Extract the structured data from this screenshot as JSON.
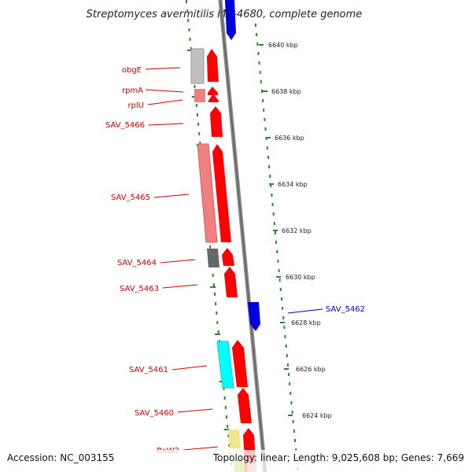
{
  "title": "Streptomyces avermitilis MA-4680, complete genome",
  "footer": {
    "accession": "Accession: NC_003155",
    "summary": "Topology: linear; Length: 9,025,608 bp; Genes: 7,669"
  },
  "scale": {
    "ticks": [
      "6640 kbp",
      "6638 kbp",
      "6636 kbp",
      "6634 kbp",
      "6632 kbp",
      "6630 kbp",
      "6628 kbp",
      "6626 kbp",
      "6624 kbp"
    ]
  },
  "genes": {
    "left": [
      "obgE",
      "rpmA",
      "rplU",
      "SAV_5466",
      "SAV_5465",
      "SAV_5464",
      "SAV_5463",
      "SAV_5461",
      "SAV_5460",
      "ftsW2"
    ],
    "right": [
      "SAV_5462"
    ]
  },
  "colors": {
    "forward_strand": "#ff0000",
    "reverse_strand": "#0000dd",
    "label_left": "#cc0000",
    "label_right": "#0000cc",
    "backbone": "#888888",
    "dotted_track": "#2a8a2a",
    "cog_grey_light": "#c0c0c0",
    "cog_pink": "#f08080",
    "cog_dark": "#666666",
    "cog_cyan": "#00ffff",
    "cog_yellow": "#f0e68c",
    "cog_olive": "#9acd32"
  }
}
